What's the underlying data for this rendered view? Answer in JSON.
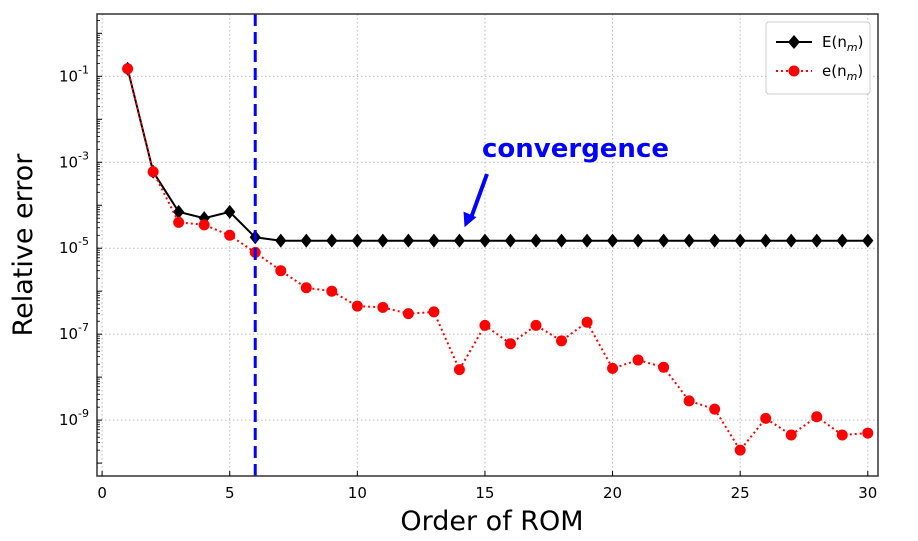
{
  "chart_data": {
    "type": "line",
    "xlabel": "Order of ROM",
    "ylabel": "Relative error",
    "x_ticks": [
      "0",
      "5",
      "10",
      "15",
      "20",
      "25",
      "30"
    ],
    "y_ticks": [
      {
        "base": "10",
        "exp": "-1",
        "value": 0.1
      },
      {
        "base": "10",
        "exp": "-3",
        "value": 0.001
      },
      {
        "base": "10",
        "exp": "-5",
        "value": 1e-05
      },
      {
        "base": "10",
        "exp": "-7",
        "value": 1e-07
      },
      {
        "base": "10",
        "exp": "-9",
        "value": 1e-09
      }
    ],
    "xlim": [
      -0.2,
      30.4
    ],
    "ylim_log10": [
      -10.3,
      0.45
    ],
    "y_scale": "log",
    "grid": true,
    "legend_position": "top-right",
    "x": [
      1,
      2,
      3,
      4,
      5,
      6,
      7,
      8,
      9,
      10,
      11,
      12,
      13,
      14,
      15,
      16,
      17,
      18,
      19,
      20,
      21,
      22,
      23,
      24,
      25,
      26,
      27,
      28,
      29,
      30
    ],
    "series": [
      {
        "name": "E(n_m)",
        "legend_main": "E(n",
        "legend_sub": "m",
        "legend_close": ")",
        "color": "#000000",
        "marker": "diamond",
        "line_style": "solid",
        "values": [
          0.15,
          0.0006,
          7e-05,
          5e-05,
          7e-05,
          1.8e-05,
          1.5e-05,
          1.5e-05,
          1.5e-05,
          1.5e-05,
          1.5e-05,
          1.5e-05,
          1.5e-05,
          1.5e-05,
          1.5e-05,
          1.5e-05,
          1.5e-05,
          1.5e-05,
          1.5e-05,
          1.5e-05,
          1.5e-05,
          1.5e-05,
          1.5e-05,
          1.5e-05,
          1.5e-05,
          1.5e-05,
          1.5e-05,
          1.5e-05,
          1.5e-05,
          1.5e-05
        ]
      },
      {
        "name": "e(n_m)",
        "legend_main": "e(n",
        "legend_sub": "m",
        "legend_close": ")",
        "color": "#ff0000",
        "marker": "circle",
        "line_style": "dotted",
        "values": [
          0.15,
          0.0006,
          4e-05,
          3.5e-05,
          2e-05,
          8e-06,
          3e-06,
          1.2e-06,
          1e-06,
          4.5e-07,
          4.2e-07,
          3e-07,
          3.3e-07,
          1.5e-08,
          1.6e-07,
          6e-08,
          1.6e-07,
          7e-08,
          1.9e-07,
          1.6e-08,
          2.5e-08,
          1.7e-08,
          2.8e-09,
          1.8e-09,
          2e-10,
          1.1e-09,
          4.5e-10,
          1.2e-09,
          4.5e-10,
          5e-10
        ]
      }
    ],
    "vline": {
      "x": 6,
      "color": "#0000ff",
      "style": "dashed"
    },
    "annotation": {
      "text": "convergence",
      "color": "#0000ff",
      "arrow_to_x": 14.2,
      "arrow_to_y": 1.8e-05
    }
  }
}
